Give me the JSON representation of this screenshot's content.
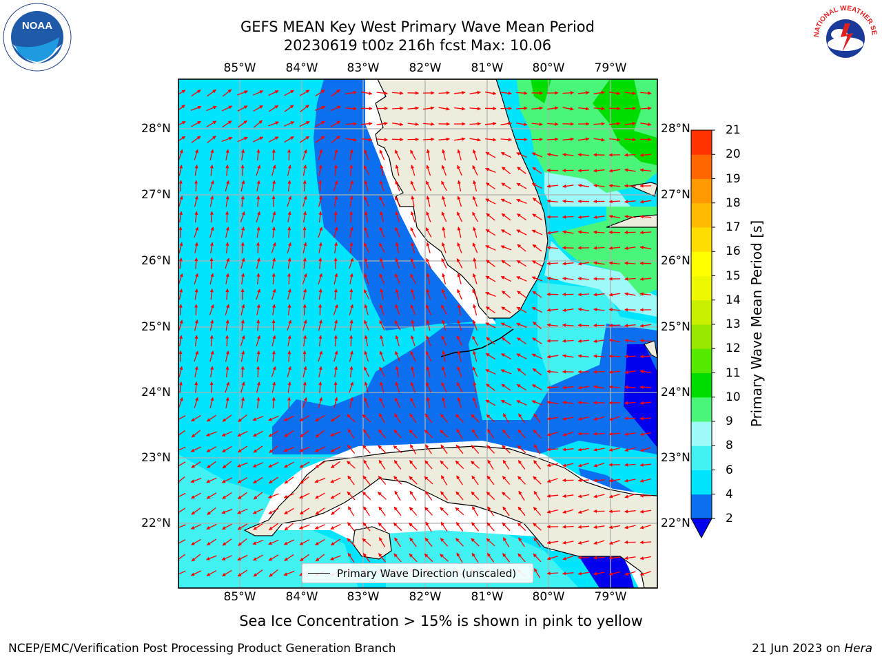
{
  "title_line1": "GEFS MEAN Key West Primary Wave Mean Period",
  "title_line2": "20230619 t00z 216h fcst   Max: 10.06",
  "lon_labels": [
    "85°W",
    "84°W",
    "83°W",
    "82°W",
    "81°W",
    "80°W",
    "79°W"
  ],
  "lat_labels": [
    "28°N",
    "27°N",
    "26°N",
    "25°N",
    "24°N",
    "23°N",
    "22°N"
  ],
  "colorbar": {
    "title": "Primary Wave Mean Period [s]",
    "ticks": [
      "2",
      "4",
      "6",
      "8",
      "9",
      "10",
      "11",
      "12",
      "13",
      "14",
      "15",
      "16",
      "17",
      "18",
      "19",
      "20",
      "21"
    ],
    "colors": [
      "#0a70ef",
      "#00e5ff",
      "#42f2f2",
      "#9ef9f9",
      "#4bf57a",
      "#00dd00",
      "#55ea00",
      "#99e600",
      "#c9f000",
      "#eef800",
      "#ffff00",
      "#ffdd00",
      "#ffbb00",
      "#ff9900",
      "#ff6600",
      "#ff3300"
    ],
    "under_color": "#0000ee"
  },
  "legend": {
    "label": "Primary Wave Direction (unscaled)"
  },
  "ice_note": "Sea Ice Concentration > 15% is shown in pink to yellow",
  "footer": {
    "left": "NCEP/EMC/Verification Post Processing Product Generation Branch",
    "right_prefix": "21 Jun 2023 on ",
    "right_host": "Hera"
  },
  "logos": {
    "noaa_text": "NOAA",
    "nws_text": "NATIONAL WEATHER SERVICE"
  },
  "colors": {
    "land": "#eeecdc",
    "grid": "#b0b0b0",
    "arrow": "#ff0000"
  }
}
